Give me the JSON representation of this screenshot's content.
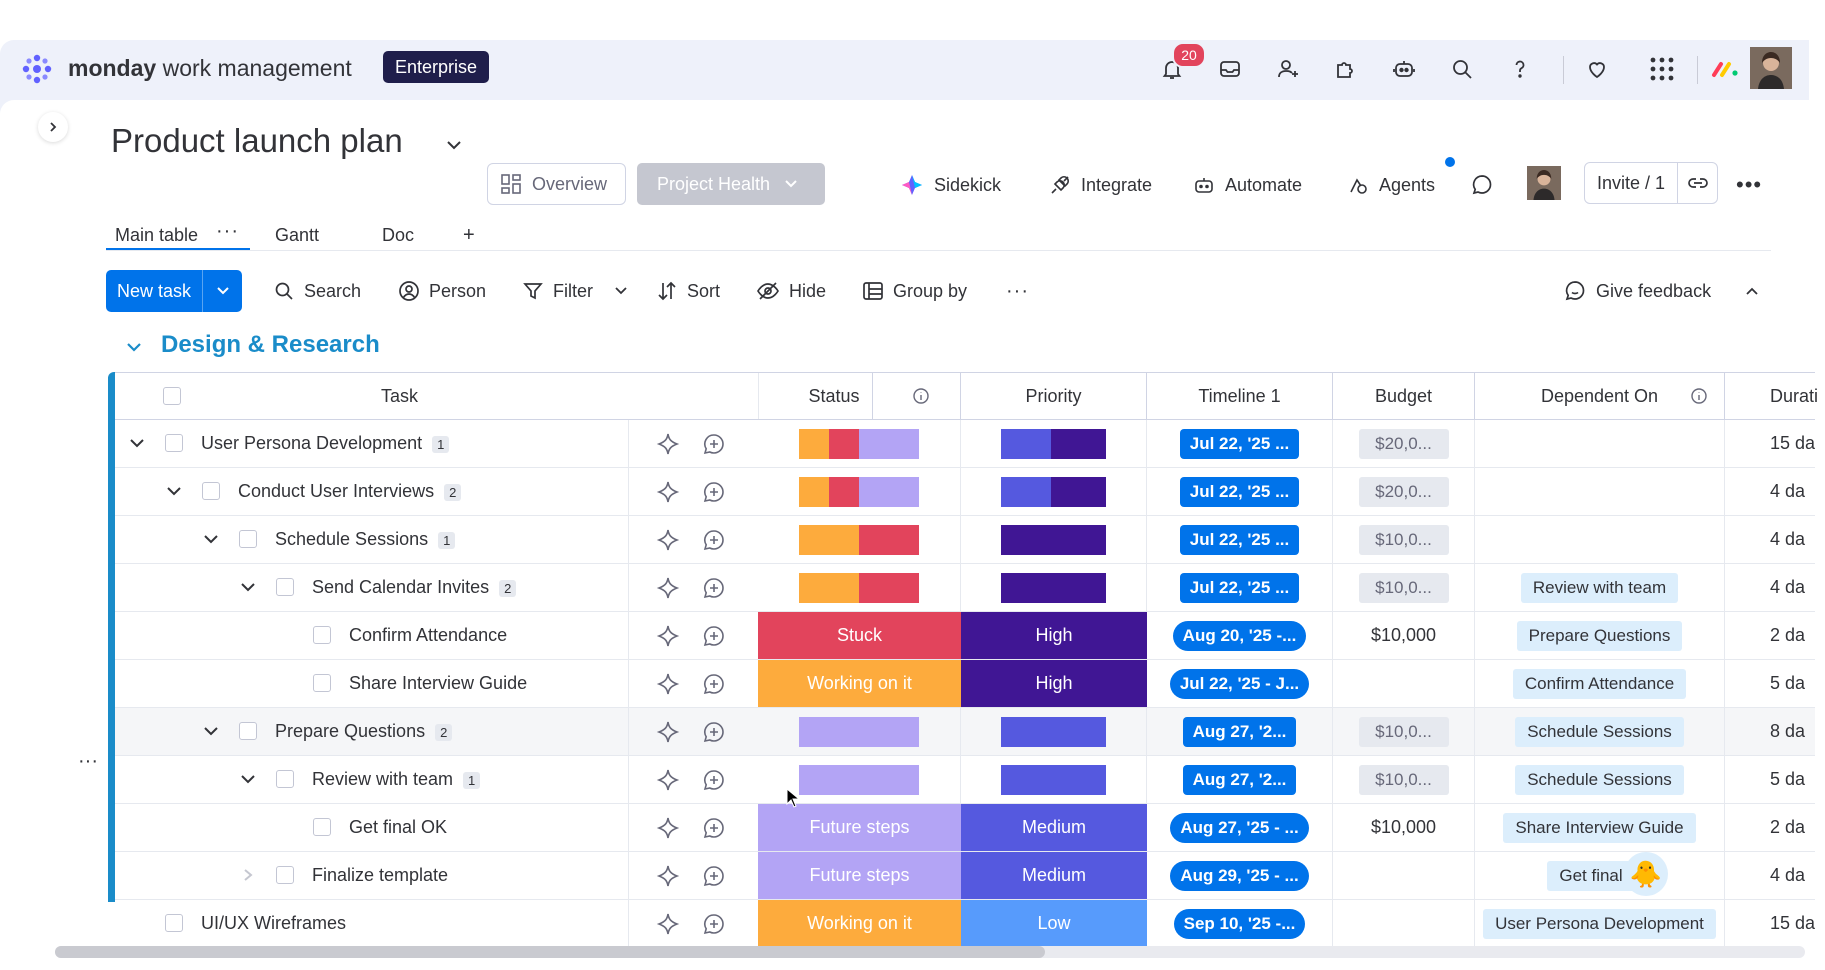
{
  "app": {
    "brand_bold": "monday",
    "brand_light": "work management",
    "plan_badge": "Enterprise",
    "notification_count": "20"
  },
  "board": {
    "title": "Product launch plan",
    "overview_label": "Overview",
    "project_health_label": "Project Health",
    "actions": {
      "sidekick": "Sidekick",
      "integrate": "Integrate",
      "automate": "Automate",
      "agents": "Agents",
      "invite": "Invite / 1"
    },
    "tabs": [
      "Main table",
      "Gantt",
      "Doc",
      "+"
    ]
  },
  "toolbar": {
    "new_task": "New task",
    "search": "Search",
    "person": "Person",
    "filter": "Filter",
    "sort": "Sort",
    "hide": "Hide",
    "group_by": "Group by",
    "give_feedback": "Give feedback"
  },
  "group": {
    "title": "Design & Research",
    "color": "#1a8cc9"
  },
  "columns": [
    "Task",
    "Status",
    "Priority",
    "Timeline 1",
    "Budget",
    "Dependent On",
    "Durati"
  ],
  "colors": {
    "stuck": "#e2445c",
    "working": "#fdab3d",
    "future": "#b3a4f5",
    "high": "#401694",
    "medium": "#5559df",
    "low": "#579bfc",
    "timeline": "#0073ea"
  },
  "rows": [
    {
      "task": "User Persona Development",
      "count": "1",
      "budget": "$20,0...",
      "timeline": "Jul 22, '25 ...",
      "dependent": "",
      "duration": "15 da"
    },
    {
      "task": "Conduct User Interviews",
      "count": "2",
      "budget": "$20,0...",
      "timeline": "Jul 22, '25 ...",
      "dependent": "",
      "duration": "4 da"
    },
    {
      "task": "Schedule Sessions",
      "count": "1",
      "budget": "$10,0...",
      "timeline": "Jul 22, '25 ...",
      "dependent": "",
      "duration": "4 da"
    },
    {
      "task": "Send Calendar Invites",
      "count": "2",
      "budget": "$10,0...",
      "timeline": "Jul 22, '25 ...",
      "dependent": "Review with team",
      "duration": "4 da"
    },
    {
      "task": "Confirm Attendance",
      "status": "Stuck",
      "priority": "High",
      "budget": "$10,000",
      "timeline": "Aug 20, '25 -...",
      "dependent": "Prepare Questions",
      "duration": "2 da"
    },
    {
      "task": "Share Interview Guide",
      "status": "Working on it",
      "priority": "High",
      "budget": "",
      "timeline": "Jul 22, '25 - J...",
      "dependent": "Confirm Attendance",
      "duration": "5 da"
    },
    {
      "task": "Prepare Questions",
      "count": "2",
      "budget": "$10,0...",
      "timeline": "Aug 27, '2...",
      "dependent": "Schedule Sessions",
      "duration": "8 da"
    },
    {
      "task": "Review with team",
      "count": "1",
      "budget": "$10,0...",
      "timeline": "Aug 27, '2...",
      "dependent": "Schedule Sessions",
      "duration": "5 da"
    },
    {
      "task": "Get final OK",
      "status": "Future steps",
      "priority": "Medium",
      "budget": "$10,000",
      "timeline": "Aug 27, '25 - ...",
      "dependent": "Share Interview Guide",
      "duration": "2 da"
    },
    {
      "task": "Finalize template",
      "status": "Future steps",
      "priority": "Medium",
      "budget": "",
      "timeline": "Aug 29, '25 - ...",
      "dependent": "Get final C",
      "duration": "4 da"
    },
    {
      "task": "UI/UX Wireframes",
      "status": "Working on it",
      "priority": "Low",
      "budget": "",
      "timeline": "Sep 10, '25 -...",
      "dependent": "User Persona Development",
      "duration": "15 da"
    }
  ]
}
